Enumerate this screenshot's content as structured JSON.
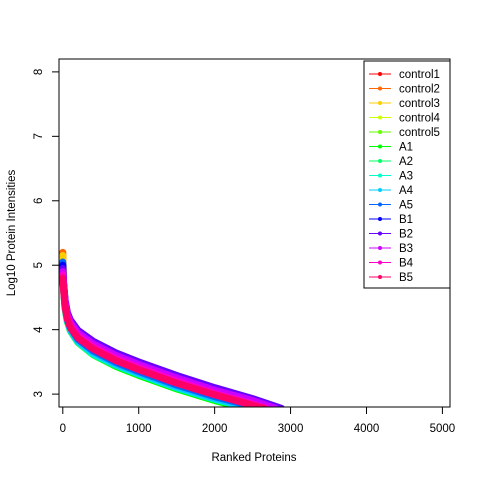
{
  "chart_data": {
    "type": "line",
    "title": "",
    "xlabel": "Ranked Proteins",
    "ylabel": "Log10 Protein Intensities",
    "xlim": [
      -50,
      5100
    ],
    "ylim": [
      2.8,
      8.2
    ],
    "x_ticks": [
      0,
      1000,
      2000,
      3000,
      4000,
      5000
    ],
    "x_tick_labels": [
      "0",
      "1000",
      "2000",
      "3000",
      "4000",
      "5000"
    ],
    "y_ticks": [
      3,
      4,
      5,
      6,
      7,
      8
    ],
    "y_tick_labels": [
      "3",
      "4",
      "5",
      "6",
      "7",
      "8"
    ],
    "grid": false,
    "legend_position": "top-right",
    "series": [
      {
        "name": "control1",
        "color": "#FF0000",
        "x": [
          0,
          10,
          30,
          60,
          100,
          200,
          400,
          700,
          1000,
          1500,
          2000,
          2400,
          2620
        ],
        "y": [
          5.05,
          4.7,
          4.4,
          4.2,
          4.05,
          3.88,
          3.7,
          3.52,
          3.38,
          3.17,
          2.98,
          2.85,
          2.78
        ]
      },
      {
        "name": "control2",
        "color": "#FF6600",
        "x": [
          0,
          10,
          30,
          60,
          100,
          200,
          400,
          700,
          1000,
          1500,
          2000,
          2400,
          2600
        ],
        "y": [
          5.2,
          4.72,
          4.42,
          4.2,
          4.06,
          3.88,
          3.7,
          3.52,
          3.38,
          3.17,
          2.98,
          2.85,
          2.78
        ]
      },
      {
        "name": "control3",
        "color": "#FFCC00",
        "x": [
          0,
          10,
          30,
          60,
          100,
          200,
          400,
          700,
          1000,
          1500,
          2000,
          2400,
          2580
        ],
        "y": [
          5.15,
          4.7,
          4.4,
          4.18,
          4.04,
          3.86,
          3.68,
          3.5,
          3.36,
          3.15,
          2.96,
          2.84,
          2.78
        ]
      },
      {
        "name": "control4",
        "color": "#CCFF00",
        "x": [
          0,
          10,
          30,
          60,
          100,
          200,
          400,
          700,
          1000,
          1500,
          2000,
          2350,
          2500
        ],
        "y": [
          5.0,
          4.66,
          4.37,
          4.15,
          4.01,
          3.83,
          3.64,
          3.46,
          3.32,
          3.11,
          2.93,
          2.82,
          2.78
        ]
      },
      {
        "name": "control5",
        "color": "#66FF00",
        "x": [
          0,
          10,
          30,
          60,
          100,
          200,
          400,
          700,
          1000,
          1500,
          2000,
          2320,
          2450
        ],
        "y": [
          4.95,
          4.64,
          4.35,
          4.13,
          3.99,
          3.81,
          3.62,
          3.44,
          3.3,
          3.09,
          2.91,
          2.81,
          2.78
        ]
      },
      {
        "name": "A1",
        "color": "#00FF00",
        "x": [
          0,
          10,
          30,
          60,
          100,
          200,
          400,
          700,
          1000,
          1500,
          2000,
          2300,
          2420
        ],
        "y": [
          4.9,
          4.62,
          4.33,
          4.12,
          3.98,
          3.8,
          3.61,
          3.43,
          3.29,
          3.08,
          2.9,
          2.81,
          2.78
        ]
      },
      {
        "name": "A2",
        "color": "#00FF66",
        "x": [
          0,
          10,
          30,
          60,
          100,
          200,
          400,
          700,
          1000,
          1500,
          2000,
          2330,
          2460
        ],
        "y": [
          4.95,
          4.64,
          4.35,
          4.14,
          4.0,
          3.82,
          3.63,
          3.45,
          3.31,
          3.1,
          2.92,
          2.82,
          2.78
        ]
      },
      {
        "name": "A3",
        "color": "#00FFCC",
        "x": [
          0,
          10,
          30,
          60,
          100,
          200,
          400,
          700,
          1000,
          1500,
          2000,
          2350,
          2480
        ],
        "y": [
          4.9,
          4.63,
          4.34,
          4.13,
          3.99,
          3.81,
          3.62,
          3.45,
          3.31,
          3.1,
          2.92,
          2.82,
          2.78
        ]
      },
      {
        "name": "A4",
        "color": "#00CCFF",
        "x": [
          0,
          10,
          30,
          60,
          100,
          200,
          400,
          700,
          1000,
          1500,
          2000,
          2360,
          2500
        ],
        "y": [
          4.95,
          4.65,
          4.36,
          4.14,
          4.0,
          3.82,
          3.64,
          3.46,
          3.32,
          3.11,
          2.93,
          2.82,
          2.78
        ]
      },
      {
        "name": "A5",
        "color": "#0066FF",
        "x": [
          0,
          10,
          30,
          60,
          100,
          200,
          400,
          700,
          1000,
          1500,
          2000,
          2400,
          2560
        ],
        "y": [
          5.05,
          4.68,
          4.38,
          4.17,
          4.03,
          3.85,
          3.67,
          3.49,
          3.35,
          3.14,
          2.96,
          2.84,
          2.78
        ]
      },
      {
        "name": "B1",
        "color": "#0000FF",
        "x": [
          0,
          10,
          30,
          60,
          100,
          200,
          400,
          700,
          1000,
          1500,
          2000,
          2500,
          2850
        ],
        "y": [
          5.0,
          4.72,
          4.45,
          4.26,
          4.13,
          3.97,
          3.8,
          3.62,
          3.48,
          3.27,
          3.08,
          2.92,
          2.78
        ]
      },
      {
        "name": "B2",
        "color": "#6600FF",
        "x": [
          0,
          10,
          30,
          60,
          100,
          200,
          400,
          700,
          1000,
          1500,
          2000,
          2500,
          2880
        ],
        "y": [
          4.95,
          4.73,
          4.46,
          4.27,
          4.15,
          3.99,
          3.82,
          3.64,
          3.5,
          3.29,
          3.1,
          2.93,
          2.78
        ]
      },
      {
        "name": "B3",
        "color": "#CC00FF",
        "x": [
          0,
          10,
          30,
          60,
          100,
          200,
          400,
          700,
          1000,
          1500,
          2000,
          2500,
          2800
        ],
        "y": [
          4.9,
          4.7,
          4.43,
          4.24,
          4.11,
          3.95,
          3.78,
          3.6,
          3.46,
          3.25,
          3.06,
          2.9,
          2.78
        ]
      },
      {
        "name": "B4",
        "color": "#FF00CC",
        "x": [
          0,
          10,
          30,
          60,
          100,
          200,
          400,
          700,
          1000,
          1500,
          2000,
          2400,
          2680
        ],
        "y": [
          4.85,
          4.65,
          4.38,
          4.19,
          4.06,
          3.9,
          3.73,
          3.55,
          3.41,
          3.2,
          3.01,
          2.88,
          2.78
        ]
      },
      {
        "name": "B5",
        "color": "#FF0066",
        "x": [
          0,
          10,
          30,
          60,
          100,
          200,
          400,
          700,
          1000,
          1500,
          2000,
          2400,
          2650
        ],
        "y": [
          4.8,
          4.62,
          4.35,
          4.16,
          4.03,
          3.87,
          3.7,
          3.52,
          3.38,
          3.17,
          2.99,
          2.86,
          2.78
        ]
      }
    ]
  }
}
